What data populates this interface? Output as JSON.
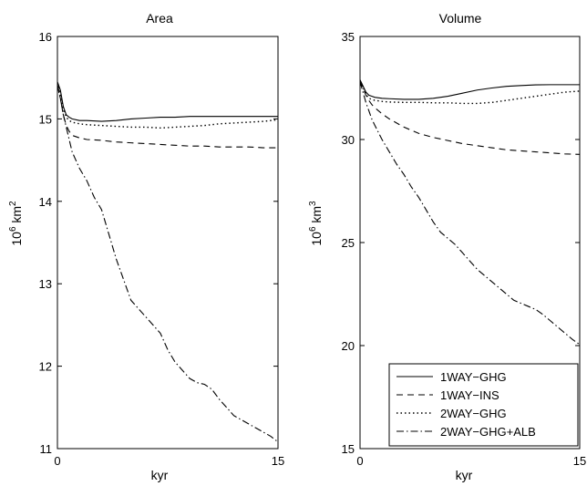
{
  "chart_data": [
    {
      "type": "line",
      "title": "Area",
      "xlabel": "kyr",
      "ylabel": {
        "base": "10",
        "exp": "6",
        "unit": " km",
        "unit_exp": "2"
      },
      "xlim": [
        0,
        15
      ],
      "ylim": [
        11,
        16
      ],
      "xticks": [
        "0",
        "15"
      ],
      "xtick_values": [
        0,
        15
      ],
      "yticks": [
        "11",
        "12",
        "13",
        "14",
        "15",
        "16"
      ],
      "ytick_values": [
        11,
        12,
        13,
        14,
        15,
        16
      ],
      "series": [
        {
          "name": "1WAY−GHG",
          "style": "solid",
          "x": [
            0,
            0.2,
            0.4,
            0.6,
            0.8,
            1.0,
            1.5,
            2,
            3,
            4,
            5,
            6,
            7,
            8,
            9,
            10,
            11,
            12,
            13,
            14,
            15
          ],
          "y": [
            15.45,
            15.35,
            15.15,
            15.05,
            15.02,
            15.0,
            14.98,
            14.98,
            14.97,
            14.98,
            15.0,
            15.01,
            15.02,
            15.02,
            15.03,
            15.03,
            15.03,
            15.03,
            15.03,
            15.03,
            15.03
          ]
        },
        {
          "name": "1WAY−INS",
          "style": "dashed",
          "x": [
            0,
            0.2,
            0.4,
            0.6,
            0.8,
            1.0,
            1.5,
            2,
            3,
            4,
            5,
            6,
            7,
            8,
            9,
            10,
            11,
            12,
            13,
            14,
            15
          ],
          "y": [
            15.42,
            15.25,
            15.05,
            14.92,
            14.85,
            14.8,
            14.77,
            14.75,
            14.74,
            14.72,
            14.71,
            14.7,
            14.69,
            14.68,
            14.67,
            14.67,
            14.66,
            14.66,
            14.66,
            14.65,
            14.65
          ]
        },
        {
          "name": "2WAY−GHG",
          "style": "dotted",
          "x": [
            0,
            0.2,
            0.4,
            0.6,
            0.8,
            1.0,
            1.5,
            2,
            3,
            4,
            5,
            6,
            7,
            8,
            9,
            10,
            11,
            12,
            13,
            14,
            15
          ],
          "y": [
            15.44,
            15.3,
            15.12,
            15.02,
            14.98,
            14.96,
            14.94,
            14.93,
            14.92,
            14.91,
            14.9,
            14.9,
            14.89,
            14.9,
            14.91,
            14.92,
            14.94,
            14.95,
            14.96,
            14.97,
            14.99
          ]
        },
        {
          "name": "2WAY−GHG+ALB",
          "style": "dashdot",
          "x": [
            0,
            0.2,
            0.4,
            0.6,
            0.8,
            1.0,
            1.5,
            2,
            2.5,
            3,
            3.5,
            4,
            4.5,
            5,
            5.5,
            6,
            6.5,
            7,
            7.5,
            8,
            8.5,
            9,
            9.5,
            10,
            10.5,
            11,
            11.5,
            12,
            12.5,
            13,
            13.5,
            14,
            14.5,
            15
          ],
          "y": [
            15.4,
            15.25,
            15.05,
            14.9,
            14.75,
            14.6,
            14.4,
            14.25,
            14.05,
            13.9,
            13.6,
            13.3,
            13.05,
            12.8,
            12.7,
            12.6,
            12.5,
            12.4,
            12.2,
            12.05,
            11.95,
            11.85,
            11.8,
            11.78,
            11.72,
            11.6,
            11.5,
            11.4,
            11.35,
            11.3,
            11.25,
            11.2,
            11.15,
            11.08
          ]
        }
      ]
    },
    {
      "type": "line",
      "title": "Volume",
      "xlabel": "kyr",
      "ylabel": {
        "base": "10",
        "exp": "6",
        "unit": " km",
        "unit_exp": "3"
      },
      "xlim": [
        0,
        15
      ],
      "ylim": [
        15,
        35
      ],
      "xticks": [
        "0",
        "15"
      ],
      "xtick_values": [
        0,
        15
      ],
      "yticks": [
        "15",
        "20",
        "25",
        "30",
        "35"
      ],
      "ytick_values": [
        15,
        20,
        25,
        30,
        35
      ],
      "legend": {
        "position": "lower-right",
        "entries": [
          "1WAY−GHG",
          "1WAY−INS",
          "2WAY−GHG",
          "2WAY−GHG+ALB"
        ]
      },
      "series": [
        {
          "name": "1WAY−GHG",
          "style": "solid",
          "x": [
            0,
            0.2,
            0.4,
            0.6,
            0.8,
            1.0,
            1.5,
            2,
            3,
            4,
            5,
            6,
            7,
            8,
            9,
            10,
            11,
            12,
            13,
            14,
            15
          ],
          "y": [
            32.9,
            32.6,
            32.3,
            32.15,
            32.1,
            32.05,
            32.0,
            31.98,
            31.95,
            31.95,
            32.0,
            32.1,
            32.25,
            32.4,
            32.5,
            32.58,
            32.62,
            32.65,
            32.66,
            32.66,
            32.66
          ]
        },
        {
          "name": "1WAY−INS",
          "style": "dashed",
          "x": [
            0,
            0.2,
            0.4,
            0.6,
            0.8,
            1.0,
            1.5,
            2,
            3,
            4,
            5,
            6,
            7,
            8,
            9,
            10,
            11,
            12,
            13,
            14,
            15
          ],
          "y": [
            32.85,
            32.5,
            32.15,
            31.9,
            31.7,
            31.55,
            31.25,
            31.0,
            30.6,
            30.3,
            30.1,
            29.95,
            29.8,
            29.7,
            29.6,
            29.5,
            29.45,
            29.4,
            29.35,
            29.3,
            29.28
          ]
        },
        {
          "name": "2WAY−GHG",
          "style": "dotted",
          "x": [
            0,
            0.2,
            0.4,
            0.6,
            0.8,
            1.0,
            1.5,
            2,
            3,
            4,
            5,
            6,
            7,
            8,
            9,
            10,
            11,
            12,
            13,
            14,
            15
          ],
          "y": [
            32.85,
            32.55,
            32.2,
            32.0,
            31.95,
            31.9,
            31.85,
            31.82,
            31.8,
            31.8,
            31.78,
            31.78,
            31.75,
            31.75,
            31.8,
            31.9,
            32.0,
            32.1,
            32.2,
            32.3,
            32.35
          ]
        },
        {
          "name": "2WAY−GHG+ALB",
          "style": "dashdot",
          "x": [
            0,
            0.2,
            0.4,
            0.6,
            0.8,
            1.0,
            1.5,
            2,
            2.5,
            3,
            3.5,
            4,
            4.5,
            5,
            5.5,
            6,
            6.5,
            7,
            7.5,
            8,
            8.5,
            9,
            9.5,
            10,
            10.5,
            11,
            11.5,
            12,
            12.5,
            13,
            13.5,
            14,
            14.5,
            15
          ],
          "y": [
            32.8,
            32.3,
            31.8,
            31.4,
            31.0,
            30.7,
            30.0,
            29.4,
            28.8,
            28.3,
            27.7,
            27.2,
            26.6,
            26.0,
            25.5,
            25.2,
            24.9,
            24.5,
            24.1,
            23.7,
            23.4,
            23.1,
            22.8,
            22.5,
            22.2,
            22.05,
            21.9,
            21.75,
            21.5,
            21.2,
            20.9,
            20.6,
            20.3,
            20.05
          ]
        }
      ]
    }
  ]
}
